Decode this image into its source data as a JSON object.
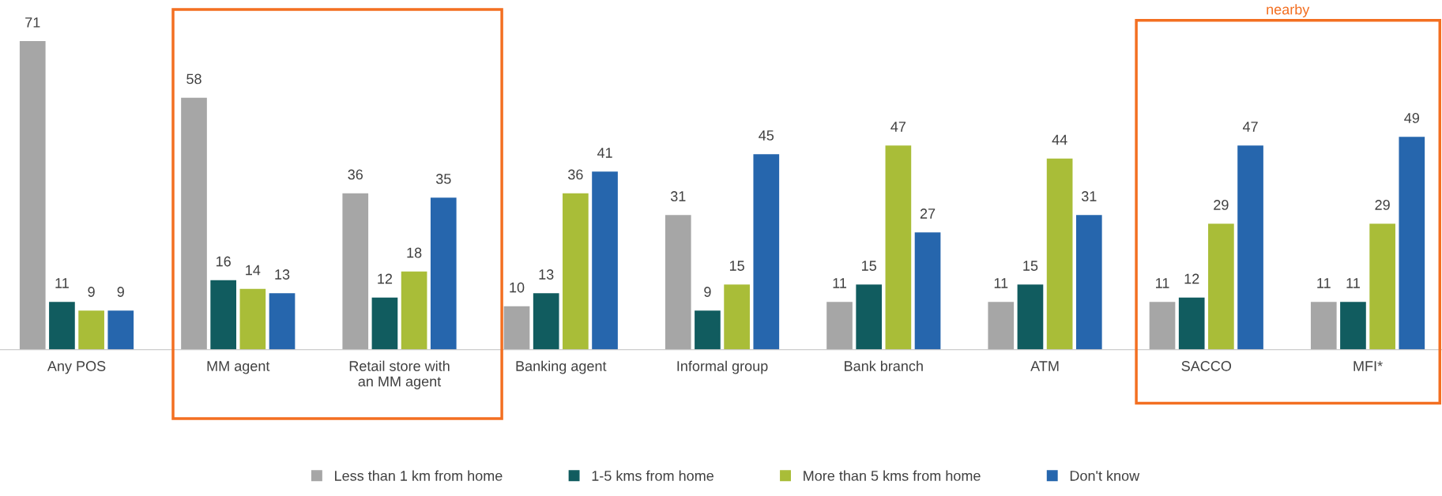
{
  "chart_data": {
    "type": "bar",
    "categories": [
      "Any POS",
      "MM agent",
      "Retail store with\nan MM agent",
      "Banking agent",
      "Informal group",
      "Bank branch",
      "ATM",
      "SACCO",
      "MFI*"
    ],
    "series": [
      {
        "name": "Less than 1 km from home",
        "color": "#a6a6a6",
        "values": [
          71,
          58,
          36,
          10,
          31,
          11,
          11,
          11,
          11
        ]
      },
      {
        "name": "1-5 kms from home",
        "color": "#115c5f",
        "values": [
          11,
          16,
          12,
          13,
          9,
          15,
          15,
          12,
          11
        ]
      },
      {
        "name": "More than 5 kms from home",
        "color": "#a9bd38",
        "values": [
          9,
          14,
          18,
          36,
          15,
          47,
          44,
          29,
          29
        ]
      },
      {
        "name": "Don't know",
        "color": "#2666ad",
        "values": [
          9,
          13,
          35,
          41,
          45,
          27,
          31,
          47,
          49
        ]
      }
    ],
    "ylim": [
      0,
      71
    ],
    "data_labels": true,
    "legend": "bottom",
    "grid": false,
    "tick_labels": "x",
    "annotations": [
      "nearby"
    ]
  }
}
